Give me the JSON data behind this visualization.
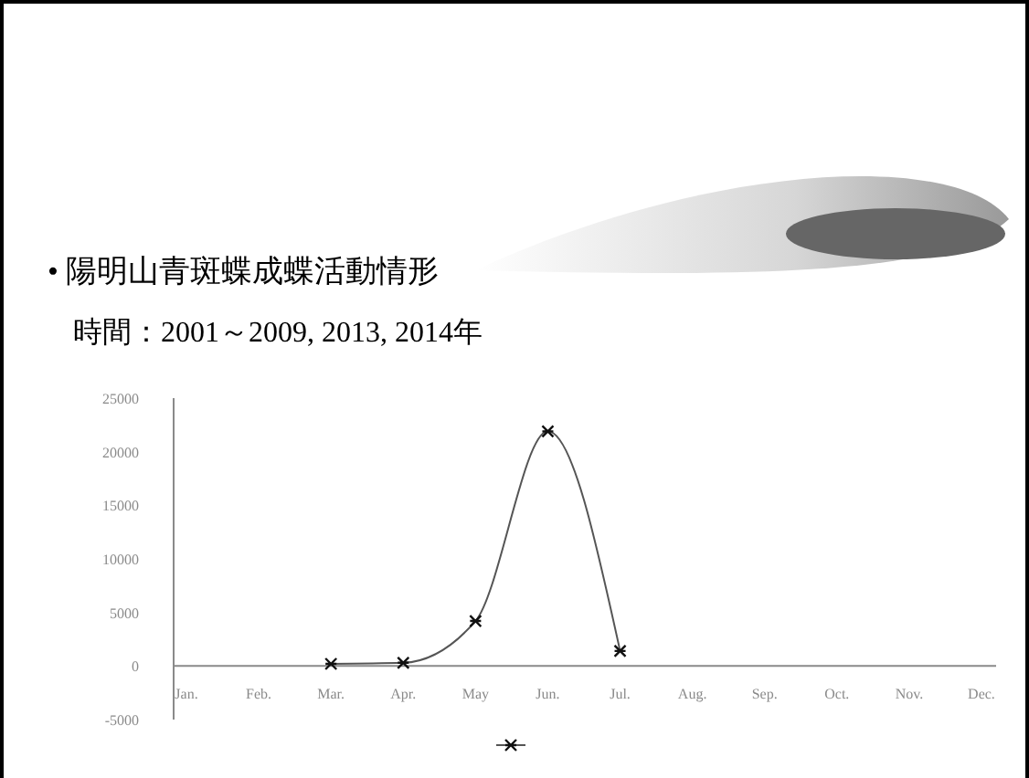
{
  "chart_data": {
    "type": "line",
    "title": "• 陽明山青斑蝶成蝶活動情形",
    "subtitle": "時間：2001～2009, 2013, 2014年",
    "categories": [
      "Jan.",
      "Feb.",
      "Mar.",
      "Apr.",
      "May",
      "Jun.",
      "Jul.",
      "Aug.",
      "Sep.",
      "Oct.",
      "Nov.",
      "Dec."
    ],
    "series": [
      {
        "color": "#555555",
        "values": [
          null,
          null,
          200,
          300,
          4200,
          21900,
          1400,
          null,
          null,
          null,
          null,
          null
        ]
      }
    ],
    "ylim": [
      -5000,
      25000
    ],
    "yticks": [
      -5000,
      0,
      5000,
      10000,
      15000,
      20000,
      25000
    ],
    "grid": false,
    "marker": "cross",
    "line_style": "solid"
  }
}
